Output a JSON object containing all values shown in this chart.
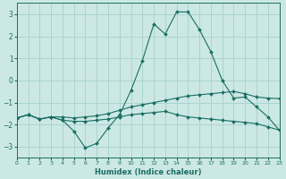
{
  "xlabel": "Humidex (Indice chaleur)",
  "bg_color": "#cce8e4",
  "grid_color": "#aad4d0",
  "line_color": "#1a6e64",
  "xlim": [
    0,
    23
  ],
  "ylim": [
    -3.5,
    3.5
  ],
  "yticks": [
    -3,
    -2,
    -1,
    0,
    1,
    2,
    3
  ],
  "xticks": [
    0,
    1,
    2,
    3,
    4,
    5,
    6,
    7,
    8,
    9,
    10,
    11,
    12,
    13,
    14,
    15,
    16,
    17,
    18,
    19,
    20,
    21,
    22,
    23
  ],
  "curve_zigzag_x": [
    0,
    1,
    2,
    3,
    4,
    5,
    6,
    7,
    8,
    9,
    10,
    11,
    12,
    13,
    14,
    15,
    16,
    17,
    18,
    19,
    20,
    21,
    22,
    23
  ],
  "curve_zigzag_y": [
    -1.7,
    -1.55,
    -1.75,
    -1.65,
    -1.8,
    -2.3,
    -3.05,
    -2.85,
    -2.15,
    -1.55,
    -0.45,
    0.9,
    2.55,
    2.1,
    3.1,
    3.1,
    2.3,
    1.3,
    0.0,
    -0.8,
    -0.75,
    -1.2,
    -1.65,
    -2.25
  ],
  "curve_upper_x": [
    0,
    1,
    2,
    3,
    4,
    5,
    6,
    7,
    8,
    9,
    10,
    11,
    12,
    13,
    14,
    15,
    16,
    17,
    18,
    19,
    20,
    21,
    22,
    23
  ],
  "curve_upper_y": [
    -1.7,
    -1.55,
    -1.75,
    -1.65,
    -1.65,
    -1.7,
    -1.65,
    -1.6,
    -1.5,
    -1.35,
    -1.2,
    -1.1,
    -1.0,
    -0.9,
    -0.8,
    -0.7,
    -0.65,
    -0.6,
    -0.55,
    -0.5,
    -0.6,
    -0.75,
    -0.8,
    -0.82
  ],
  "curve_lower_x": [
    0,
    1,
    2,
    3,
    4,
    5,
    6,
    7,
    8,
    9,
    10,
    11,
    12,
    13,
    14,
    15,
    16,
    17,
    18,
    19,
    20,
    21,
    22,
    23
  ],
  "curve_lower_y": [
    -1.7,
    -1.55,
    -1.75,
    -1.65,
    -1.8,
    -1.85,
    -1.85,
    -1.8,
    -1.75,
    -1.65,
    -1.55,
    -1.5,
    -1.45,
    -1.4,
    -1.55,
    -1.65,
    -1.7,
    -1.75,
    -1.8,
    -1.85,
    -1.9,
    -1.95,
    -2.1,
    -2.25
  ]
}
